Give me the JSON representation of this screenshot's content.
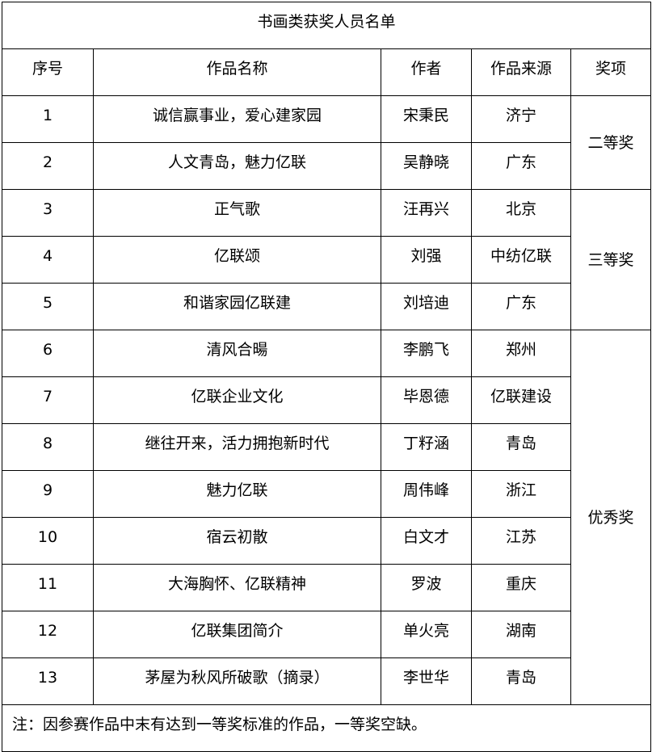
{
  "title": "书画类获奖人员名单",
  "headers": [
    "序号",
    "作品名称",
    "作者",
    "作品来源",
    "奖项"
  ],
  "rows": [
    {
      "no": "1",
      "work": "诚信赢事业，爱心建家园",
      "author": "宋秉民",
      "source": "济宁"
    },
    {
      "no": "2",
      "work": "人文青岛，魅力亿联",
      "author": "吴静晓",
      "source": "广东"
    },
    {
      "no": "3",
      "work": "正气歌",
      "author": "汪再兴",
      "source": "北京"
    },
    {
      "no": "4",
      "work": "亿联颂",
      "author": "刘强",
      "source": "中纺亿联"
    },
    {
      "no": "5",
      "work": "和谐家园亿联建",
      "author": "刘培迪",
      "source": "广东"
    },
    {
      "no": "6",
      "work": "清风合暘",
      "author": "李鹏飞",
      "source": "郑州"
    },
    {
      "no": "7",
      "work": "亿联企业文化",
      "author": "毕恩德",
      "source": "亿联建设"
    },
    {
      "no": "8",
      "work": "继往开来，活力拥抱新时代",
      "author": "丁籽涵",
      "source": "青岛"
    },
    {
      "no": "9",
      "work": "魅力亿联",
      "author": "周伟峰",
      "source": "浙江"
    },
    {
      "no": "10",
      "work": "宿云初散",
      "author": "白文才",
      "source": "江苏"
    },
    {
      "no": "11",
      "work": "大海胸怀、亿联精神",
      "author": "罗波",
      "source": "重庆"
    },
    {
      "no": "12",
      "work": "亿联集团简介",
      "author": "单火亮",
      "source": "湖南"
    },
    {
      "no": "13",
      "work": "茅屋为秋风所破歌（摘录）",
      "author": "李世华",
      "source": "青岛"
    }
  ],
  "awards": [
    "二等奖",
    "三等奖",
    "优秀奖"
  ],
  "note": "注：因参赛作品中末有达到一等奖标准的作品，一等奖空缺。"
}
